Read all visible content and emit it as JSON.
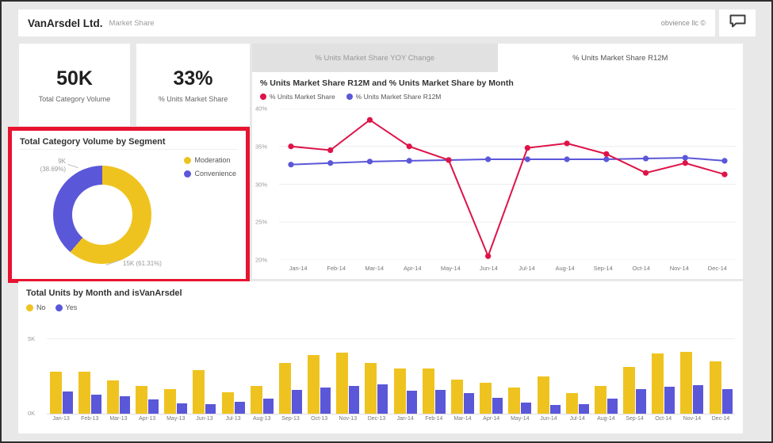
{
  "header": {
    "title": "VanArsdel Ltd.",
    "subtitle": "Market Share",
    "brand": "obvience llc ©"
  },
  "kpis": [
    {
      "value": "50K",
      "label": "Total Category Volume"
    },
    {
      "value": "33%",
      "label": "% Units Market Share"
    }
  ],
  "tabs": [
    {
      "label": "% Units Market Share YOY Change",
      "active": false
    },
    {
      "label": "% Units Market Share R12M",
      "active": true
    }
  ],
  "colors": {
    "yellow": "#EFC31F",
    "blue": "#5B57D9",
    "red": "#DE1348",
    "highlight_border": "#E8132F",
    "page_bg": "#E8E8E8"
  },
  "chart_data": [
    {
      "id": "market-share-line",
      "type": "line",
      "title": "% Units Market Share R12M and % Units Market Share by Month",
      "categories": [
        "Jan-14",
        "Feb-14",
        "Mar-14",
        "Apr-14",
        "May-14",
        "Jun-14",
        "Jul-14",
        "Aug-14",
        "Sep-14",
        "Oct-14",
        "Nov-14",
        "Dec-14"
      ],
      "series": [
        {
          "name": "% Units Market Share",
          "color": "#DE1348",
          "values": [
            35.0,
            34.5,
            38.5,
            35.0,
            33.2,
            20.5,
            34.8,
            35.4,
            34.0,
            31.5,
            32.8,
            31.3
          ]
        },
        {
          "name": "% Units Market Share R12M",
          "color": "#5B57D9",
          "values": [
            32.6,
            32.8,
            33.0,
            33.1,
            33.2,
            33.3,
            33.3,
            33.3,
            33.3,
            33.4,
            33.5,
            33.1
          ]
        }
      ],
      "ylim": [
        20,
        40
      ],
      "yticks": [
        {
          "v": 40,
          "label": "40%"
        },
        {
          "v": 35,
          "label": "35%"
        },
        {
          "v": 30,
          "label": "30%"
        },
        {
          "v": 25,
          "label": "25%"
        },
        {
          "v": 20,
          "label": "20%"
        }
      ],
      "legend_position": "top-left",
      "grid": true
    },
    {
      "id": "volume-by-segment-donut",
      "type": "pie",
      "title": "Total Category Volume by Segment",
      "slices": [
        {
          "name": "Moderation",
          "color": "#EFC31F",
          "value_label": "15K",
          "pct": 61.31,
          "pct_label": "(61.31%)"
        },
        {
          "name": "Convenience",
          "color": "#5B57D9",
          "value_label": "9K",
          "pct": 38.69,
          "pct_label": "(38.69%)"
        }
      ],
      "legend_position": "top-right"
    },
    {
      "id": "units-by-month-bar",
      "type": "bar",
      "title": "Total Units by Month and isVanArsdel",
      "categories": [
        "Jan-13",
        "Feb-13",
        "Mar-13",
        "Apr-13",
        "May-13",
        "Jun-13",
        "Jul-13",
        "Aug-13",
        "Sep-13",
        "Oct-13",
        "Nov-13",
        "Dec-13",
        "Jan-14",
        "Feb-14",
        "Mar-14",
        "Apr-14",
        "May-14",
        "Jun-14",
        "Jul-14",
        "Aug-14",
        "Sep-14",
        "Oct-14",
        "Nov-14",
        "Dec-14"
      ],
      "series": [
        {
          "name": "No",
          "color": "#EFC31F",
          "values": [
            2.8,
            2.8,
            2.25,
            1.9,
            1.65,
            2.9,
            1.45,
            1.9,
            3.4,
            3.9,
            4.05,
            3.4,
            3.0,
            3.0,
            2.3,
            2.1,
            1.75,
            2.5,
            1.4,
            1.85,
            3.15,
            4.0,
            4.1,
            3.5
          ]
        },
        {
          "name": "Yes",
          "color": "#5B57D9",
          "values": [
            1.5,
            1.3,
            1.2,
            1.0,
            0.75,
            0.7,
            0.85,
            1.05,
            1.6,
            1.75,
            1.9,
            2.0,
            1.55,
            1.6,
            1.4,
            1.1,
            0.8,
            0.65,
            0.7,
            1.05,
            1.65,
            1.8,
            1.95,
            1.65
          ]
        }
      ],
      "ylim": [
        0,
        5
      ],
      "yticks": [
        {
          "v": 5,
          "label": "5K"
        },
        {
          "v": 0,
          "label": "0K"
        }
      ],
      "legend_position": "top-left",
      "grid": true
    }
  ]
}
